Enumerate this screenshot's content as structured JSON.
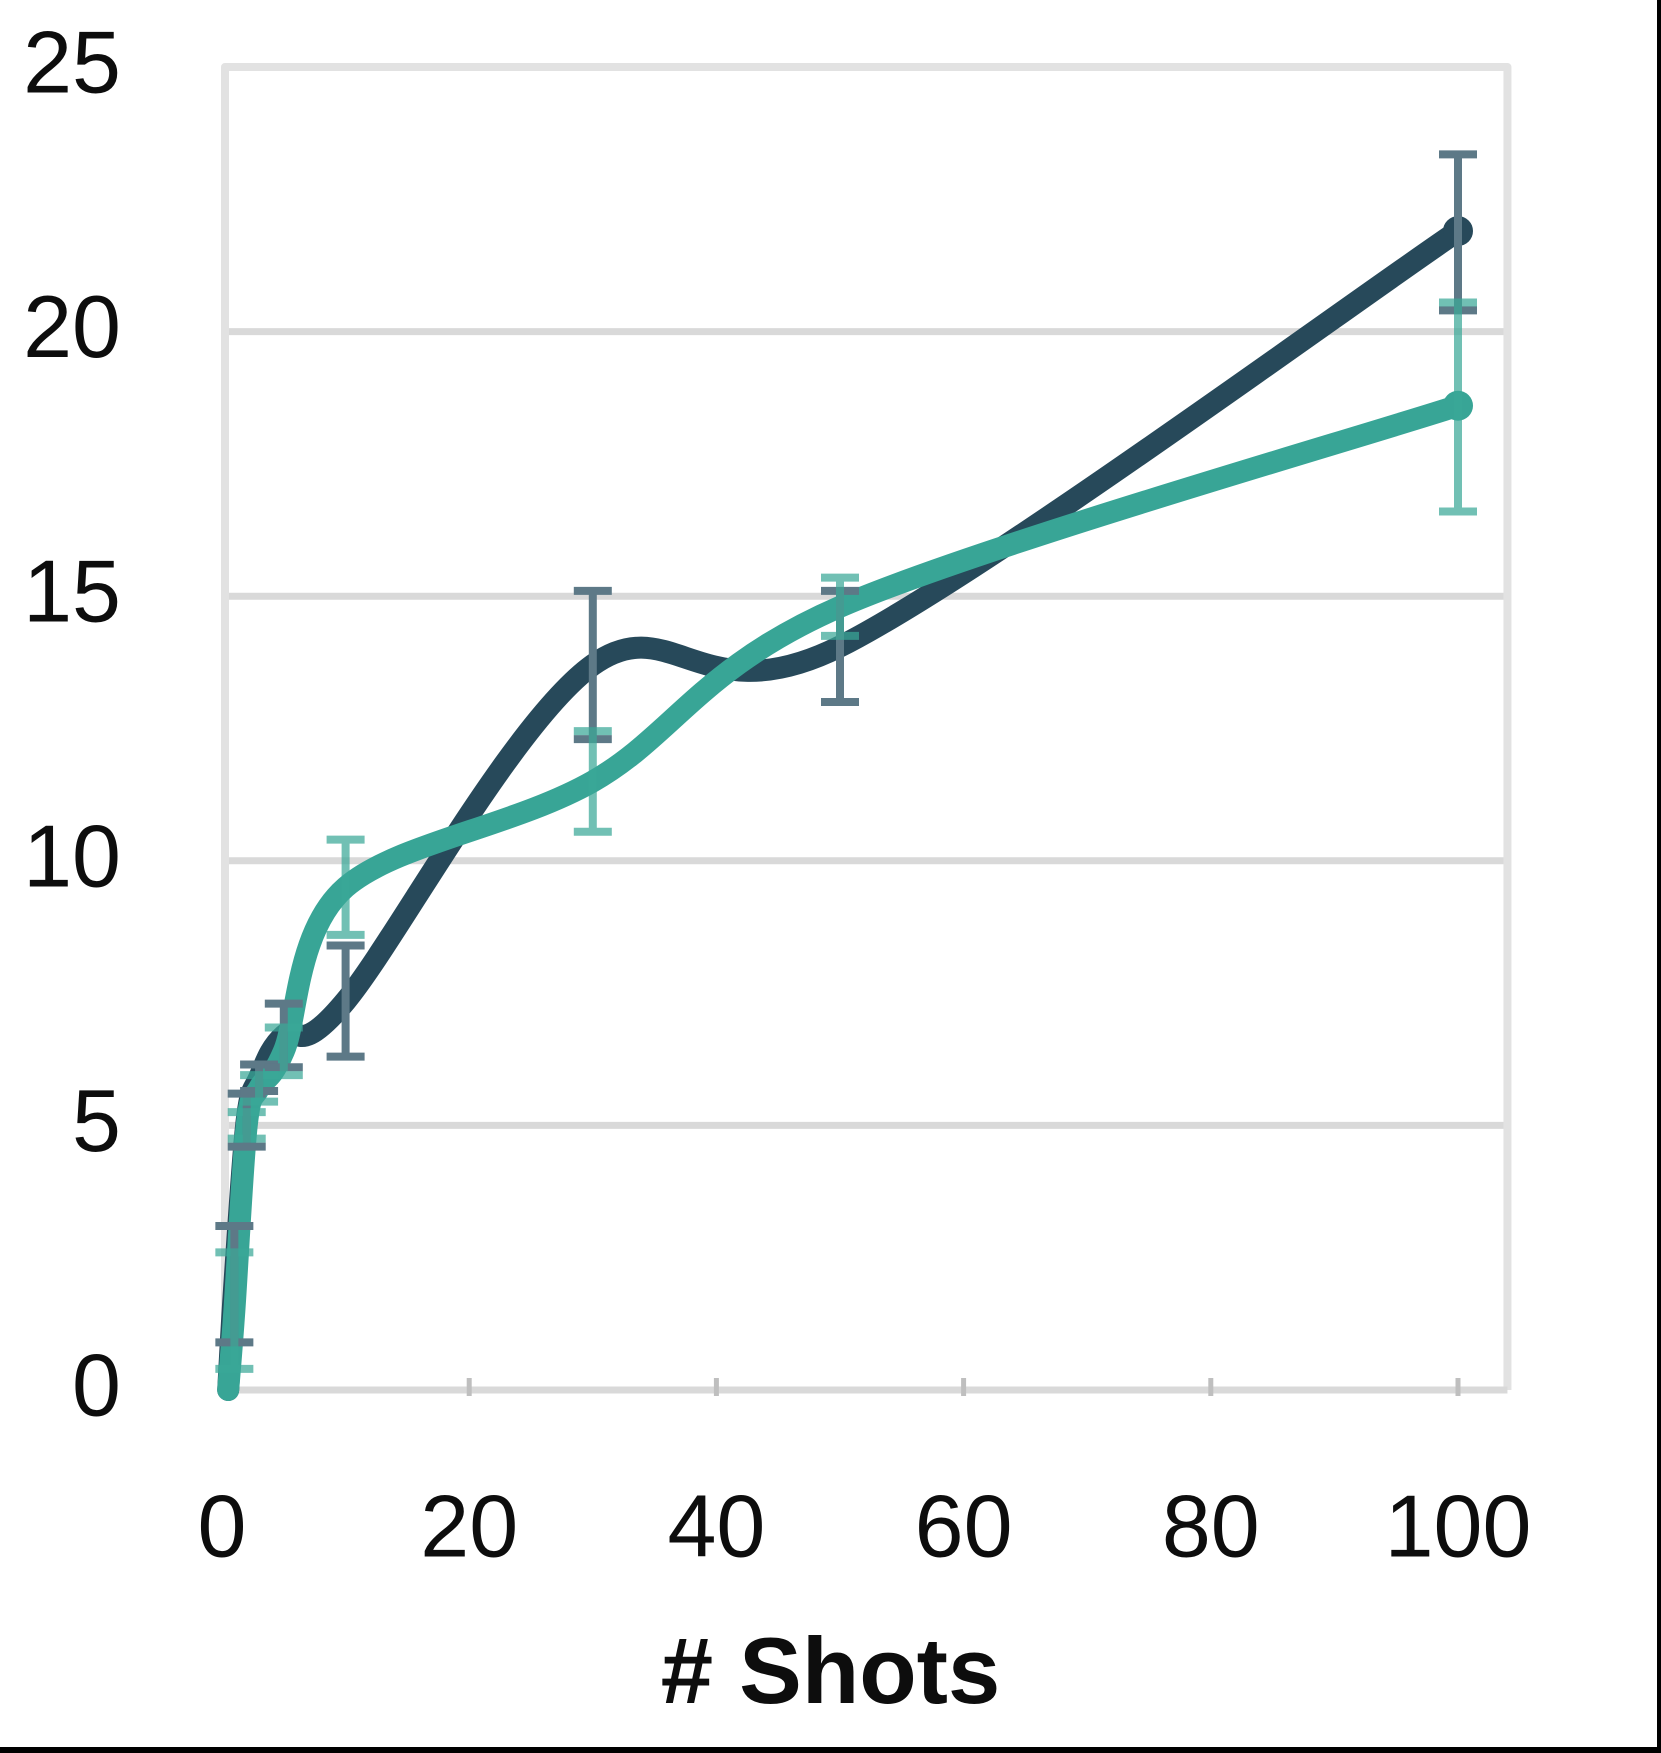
{
  "chart_data": {
    "type": "line",
    "title": "",
    "xlabel": "# Shots",
    "ylabel": "",
    "xlim": [
      0,
      104
    ],
    "ylim": [
      0,
      25
    ],
    "x_ticks": [
      0,
      20,
      40,
      60,
      80,
      100
    ],
    "y_ticks": [
      0,
      5,
      10,
      15,
      20,
      25
    ],
    "grid": "horizontal",
    "legend": "none",
    "line_style": "smoothed, thick, round caps, error bars with caps, end-point dot markers",
    "series": [
      {
        "name": "dark-slate-series",
        "color": "#27495a",
        "error_color": "#5d7987",
        "x": [
          0.5,
          1,
          2,
          3,
          5,
          10,
          30,
          50,
          100
        ],
        "y": [
          0,
          2.0,
          5.1,
          5.9,
          6.7,
          7.35,
          13.7,
          14.05,
          21.9
        ],
        "error_low": [
          null,
          0.9,
          4.6,
          5.65,
          6.1,
          6.3,
          12.3,
          13.0,
          20.4
        ],
        "error_high": [
          null,
          3.1,
          5.6,
          6.15,
          7.3,
          8.4,
          15.1,
          15.1,
          23.35
        ]
      },
      {
        "name": "teal-series",
        "color": "#38a596",
        "error_color": "rgba(58,168,151,0.72)",
        "x": [
          0.5,
          1,
          2,
          3,
          5,
          10,
          30,
          50,
          100
        ],
        "y": [
          0,
          1.5,
          5.0,
          5.7,
          6.4,
          9.5,
          11.5,
          14.8,
          18.6
        ],
        "error_low": [
          null,
          0.4,
          4.75,
          5.45,
          5.95,
          8.6,
          10.55,
          14.25,
          16.6
        ],
        "error_high": [
          null,
          2.6,
          5.25,
          5.95,
          6.85,
          10.4,
          12.45,
          15.35,
          20.55
        ]
      }
    ],
    "colors": {
      "plot_border": "#e2e2e2",
      "gridline": "#d9d9d9",
      "tick_mark": "#bfbfbf",
      "axis_text": "#0d0d0d",
      "page_rule": "#000000"
    }
  }
}
